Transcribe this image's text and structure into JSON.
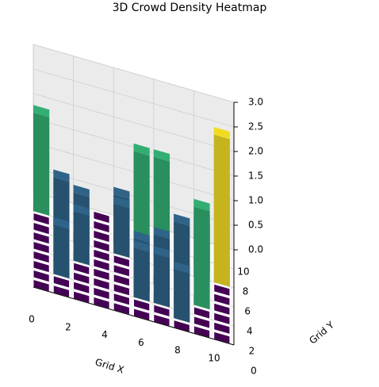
{
  "chart_data": {
    "type": "bar3d",
    "title": "3D Crowd Density Heatmap",
    "xlabel": "Grid X",
    "ylabel": "Grid Y",
    "values": [
      [
        0,
        0,
        0,
        0,
        0,
        0,
        0,
        0,
        2,
        0
      ],
      [
        0,
        0,
        1,
        0,
        0,
        0,
        0,
        1,
        0,
        0
      ],
      [
        0,
        0,
        0,
        0,
        1,
        0,
        1,
        0,
        0,
        0
      ],
      [
        0,
        0,
        0,
        0,
        0,
        0,
        0,
        0,
        0,
        0
      ],
      [
        0,
        0,
        0,
        0,
        0,
        0,
        1,
        1,
        0,
        0
      ],
      [
        0,
        0,
        1,
        1,
        0,
        0,
        0,
        2,
        0,
        0
      ],
      [
        0,
        0,
        1,
        0,
        1,
        0,
        0,
        2,
        0,
        0
      ],
      [
        0,
        1,
        0,
        0,
        0,
        0,
        1,
        0,
        0,
        0
      ],
      [
        0,
        0,
        0,
        2,
        0,
        0,
        1,
        1,
        0,
        0
      ],
      [
        0,
        0,
        0,
        0,
        0,
        0,
        3,
        0,
        0,
        0
      ]
    ],
    "colors": [
      "#440154",
      "#31688e",
      "#35b779",
      "#fde725"
    ],
    "xlim": [
      0,
      10
    ],
    "ylim": [
      0,
      10
    ],
    "zlim": [
      0,
      3
    ],
    "xticks": [
      0,
      2,
      4,
      6,
      8,
      10
    ],
    "yticks": [
      0,
      2,
      4,
      6,
      8,
      10
    ],
    "zticks": [
      {
        "value": 0,
        "label": "0.0"
      },
      {
        "value": 0.5,
        "label": "0.5"
      },
      {
        "value": 1,
        "label": "1.0"
      },
      {
        "value": 1.5,
        "label": "1.5"
      },
      {
        "value": 2,
        "label": "2.0"
      },
      {
        "value": 2.5,
        "label": "2.5"
      },
      {
        "value": 3,
        "label": "3.0"
      }
    ],
    "grid": true
  }
}
